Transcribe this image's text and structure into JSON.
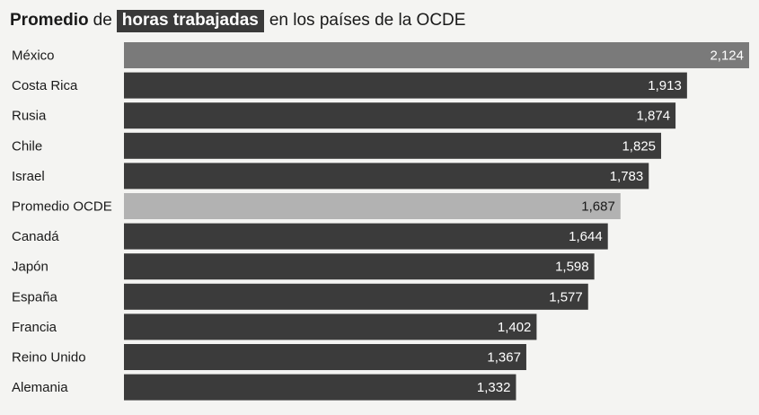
{
  "title": {
    "part1": "Promedio",
    "part2": "de",
    "highlight": "horas trabajadas",
    "part3": "en los países de la OCDE"
  },
  "colors": {
    "bar_default": "#3b3b3b",
    "bar_highlight_top": "#7a7a7a",
    "bar_average": "#b2b2b2",
    "label_on_dark": "#ffffff",
    "label_on_light": "#1a1a1a",
    "background": "#f4f4f2"
  },
  "chart_data": {
    "type": "bar",
    "orientation": "horizontal",
    "title": "Promedio de horas trabajadas en los países de la OCDE",
    "categories": [
      "México",
      "Costa Rica",
      "Rusia",
      "Chile",
      "Israel",
      "Promedio OCDE",
      "Canadá",
      "Japón",
      "España",
      "Francia",
      "Reino Unido",
      "Alemania"
    ],
    "values": [
      2124,
      1913,
      1874,
      1825,
      1783,
      1687,
      1644,
      1598,
      1577,
      1402,
      1367,
      1332
    ],
    "value_labels": [
      "2,124",
      "1,913",
      "1,874",
      "1,825",
      "1,783",
      "1,687",
      "1,644",
      "1,598",
      "1,577",
      "1,402",
      "1,367",
      "1,332"
    ],
    "highlight": {
      "México": "top",
      "Promedio OCDE": "average"
    },
    "xlim": [
      0,
      2124
    ],
    "grid": false,
    "legend": "none"
  }
}
